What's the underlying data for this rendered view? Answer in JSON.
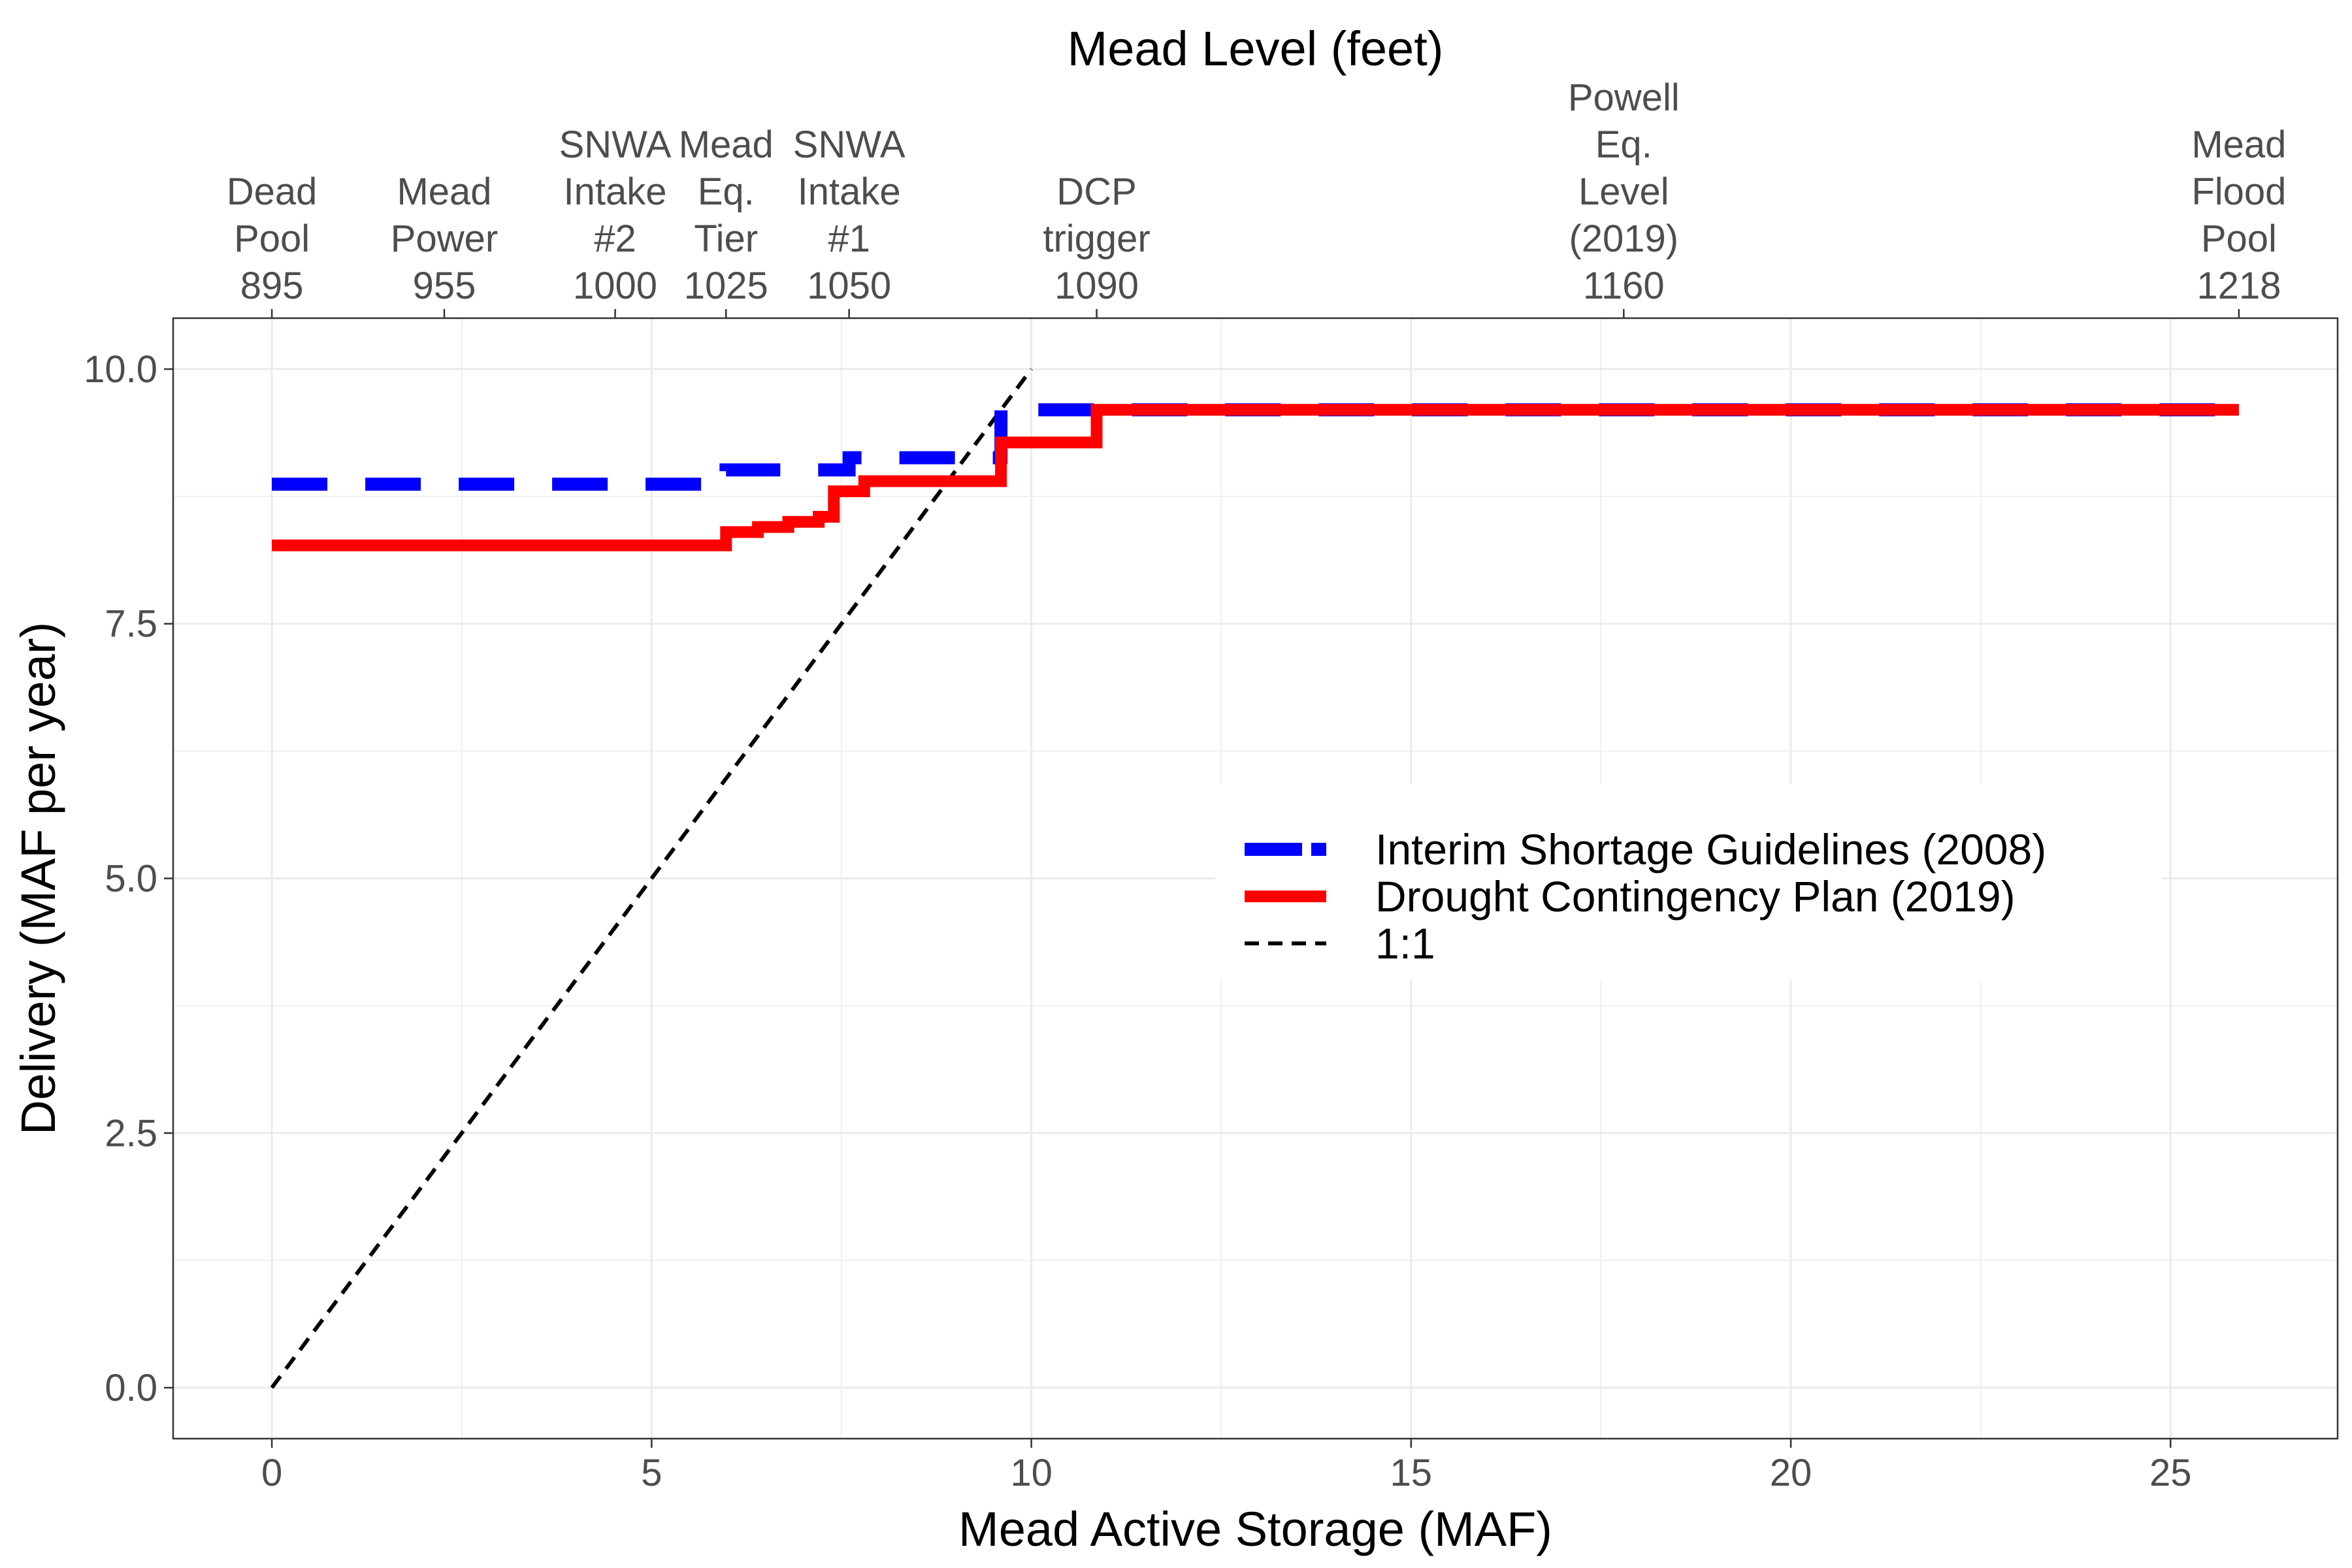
{
  "chart_data": {
    "type": "line",
    "title": "",
    "xlabel": "Mead Active Storage (MAF)",
    "ylabel": "Delivery (MAF per year)",
    "top_axis_title": "Mead Level (feet)",
    "xlim": [
      -1.3,
      27.2
    ],
    "ylim": [
      -0.5,
      10.5
    ],
    "x_ticks": [
      0,
      5,
      10,
      15,
      20,
      25
    ],
    "y_ticks": [
      0.0,
      2.5,
      5.0,
      7.5,
      10.0
    ],
    "x_tick_labels": [
      "0",
      "5",
      "10",
      "15",
      "20",
      "25"
    ],
    "y_tick_labels": [
      "0.0",
      "2.5",
      "5.0",
      "7.5",
      "10.0"
    ],
    "grid": true,
    "legend_position": "center-right",
    "top_ticks": [
      {
        "x": 0.0,
        "lines": [
          "Dead",
          "Pool",
          "895"
        ]
      },
      {
        "x": 2.27,
        "lines": [
          "Mead",
          "Power",
          "955"
        ]
      },
      {
        "x": 4.52,
        "lines": [
          "SNWA",
          "Intake",
          "#2",
          "1000"
        ]
      },
      {
        "x": 5.98,
        "lines": [
          "Mead",
          "Eq.",
          "Tier",
          "1025"
        ]
      },
      {
        "x": 7.6,
        "lines": [
          "SNWA",
          "Intake",
          "#1",
          "1050"
        ]
      },
      {
        "x": 10.86,
        "lines": [
          "DCP",
          "trigger",
          "1090"
        ]
      },
      {
        "x": 17.8,
        "lines": [
          "Powell",
          "Eq.",
          "Level",
          "(2019)",
          "1160"
        ]
      },
      {
        "x": 25.9,
        "lines": [
          "Mead",
          "Flood",
          "Pool",
          "1218"
        ]
      }
    ],
    "series": [
      {
        "name": "Interim Shortage Guidelines (2008)",
        "color": "#0000ff",
        "dash": "long",
        "x": [
          0,
          5.98,
          5.98,
          7.6,
          7.6,
          9.6,
          9.6,
          25.9
        ],
        "y": [
          8.87,
          8.87,
          9.01,
          9.01,
          9.13,
          9.13,
          9.6,
          9.6
        ]
      },
      {
        "name": "Drought Contingency Plan (2019)",
        "color": "#ff0000",
        "dash": "solid",
        "x": [
          0,
          5.98,
          5.98,
          6.4,
          6.4,
          6.8,
          6.8,
          7.2,
          7.2,
          7.4,
          7.4,
          7.8,
          7.8,
          9.6,
          9.6,
          10.86,
          10.86,
          25.9
        ],
        "y": [
          8.27,
          8.27,
          8.4,
          8.4,
          8.45,
          8.45,
          8.5,
          8.5,
          8.55,
          8.55,
          8.8,
          8.8,
          8.9,
          8.9,
          9.28,
          9.28,
          9.6,
          9.6
        ]
      },
      {
        "name": "1:1",
        "color": "#000000",
        "dash": "short",
        "x": [
          0,
          10
        ],
        "y": [
          0,
          10
        ]
      }
    ]
  }
}
